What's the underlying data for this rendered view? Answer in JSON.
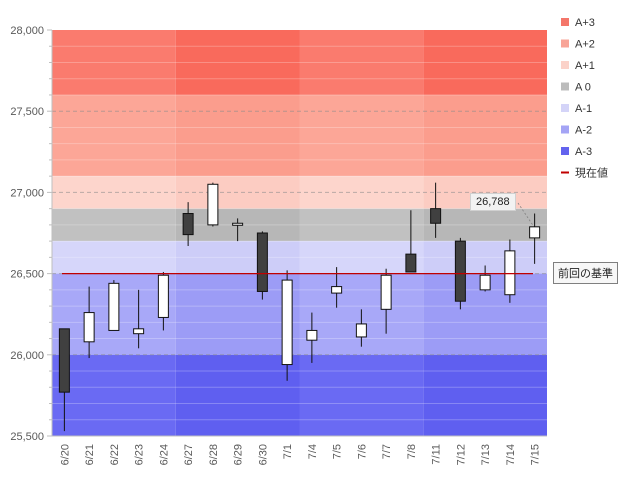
{
  "chart_data": {
    "type": "candlestick",
    "title": "",
    "xlabel": "",
    "ylabel": "",
    "ylim": [
      25500,
      28000
    ],
    "y_ticks": [
      "25,500",
      "26,000",
      "26,500",
      "27,000",
      "27,500",
      "28,000"
    ],
    "y_tick_values": [
      25500,
      26000,
      26500,
      27000,
      27500,
      28000
    ],
    "categories": [
      "6/20",
      "6/21",
      "6/22",
      "6/23",
      "6/24",
      "6/27",
      "6/28",
      "6/29",
      "6/30",
      "7/1",
      "7/4",
      "7/5",
      "7/6",
      "7/7",
      "7/8",
      "7/11",
      "7/12",
      "7/13",
      "7/14",
      "7/15"
    ],
    "open": [
      26160,
      26080,
      26150,
      26130,
      26230,
      26870,
      26800,
      26800,
      26750,
      25940,
      26090,
      26380,
      26110,
      26280,
      26620,
      26900,
      26700,
      26400,
      26370,
      26720
    ],
    "high": [
      26160,
      26420,
      26460,
      26400,
      26510,
      26940,
      27060,
      26840,
      26760,
      26520,
      26260,
      26540,
      26280,
      26530,
      26890,
      27060,
      26720,
      26550,
      26710,
      26870
    ],
    "low": [
      25530,
      25980,
      26150,
      26040,
      26150,
      26670,
      26790,
      26700,
      26340,
      25840,
      25950,
      26290,
      26050,
      26130,
      26510,
      26720,
      26280,
      26390,
      26320,
      26560
    ],
    "close": [
      25770,
      26260,
      26440,
      26160,
      26490,
      26740,
      27050,
      26810,
      26390,
      26460,
      26150,
      26420,
      26190,
      26490,
      26510,
      26810,
      26330,
      26490,
      26640,
      26788
    ],
    "bands": [
      {
        "name": "A+3",
        "low": 27600,
        "high": 28000,
        "color": "#fa7b6e",
        "color_alt": "#f96a5c"
      },
      {
        "name": "A+2",
        "low": 27100,
        "high": 27600,
        "color": "#fca697",
        "color_alt": "#fb9d8d"
      },
      {
        "name": "A+1",
        "low": 26900,
        "high": 27100,
        "color": "#fdd5cc",
        "color_alt": "#fcccc2"
      },
      {
        "name": "A 0",
        "low": 26700,
        "high": 26900,
        "color": "#c1c1c1",
        "color_alt": "#b7b7b7"
      },
      {
        "name": "A-1",
        "low": 26500,
        "high": 26700,
        "color": "#d6d6fa",
        "color_alt": "#cdcdf8"
      },
      {
        "name": "A-2",
        "low": 26000,
        "high": 26500,
        "color": "#a8a8f8",
        "color_alt": "#9c9cf6"
      },
      {
        "name": "A-3",
        "low": 25500,
        "high": 26000,
        "color": "#6a6af3",
        "color_alt": "#5f5ff0"
      }
    ],
    "baseline": 26500,
    "current_value": 26788
  },
  "legend": [
    {
      "label": "A+3",
      "color": "#f4766a",
      "kind": "square"
    },
    {
      "label": "A+2",
      "color": "#f8a497",
      "kind": "square"
    },
    {
      "label": "A+1",
      "color": "#fbd2c9",
      "kind": "square"
    },
    {
      "label": "A 0",
      "color": "#bcbcbc",
      "kind": "square"
    },
    {
      "label": "A-1",
      "color": "#d4d4f8",
      "kind": "square"
    },
    {
      "label": "A-2",
      "color": "#a4a4f5",
      "kind": "square"
    },
    {
      "label": "A-3",
      "color": "#6363ee",
      "kind": "square"
    },
    {
      "label": "現在値",
      "color": "#c00000",
      "kind": "line"
    }
  ],
  "annotations": {
    "current_value_label": "26,788",
    "baseline_label": "前回の基準"
  },
  "colors": {
    "up_fill": "#ffffff",
    "down_fill": "#404040",
    "candle_outline": "#111111",
    "baseline_line": "#c00000"
  }
}
